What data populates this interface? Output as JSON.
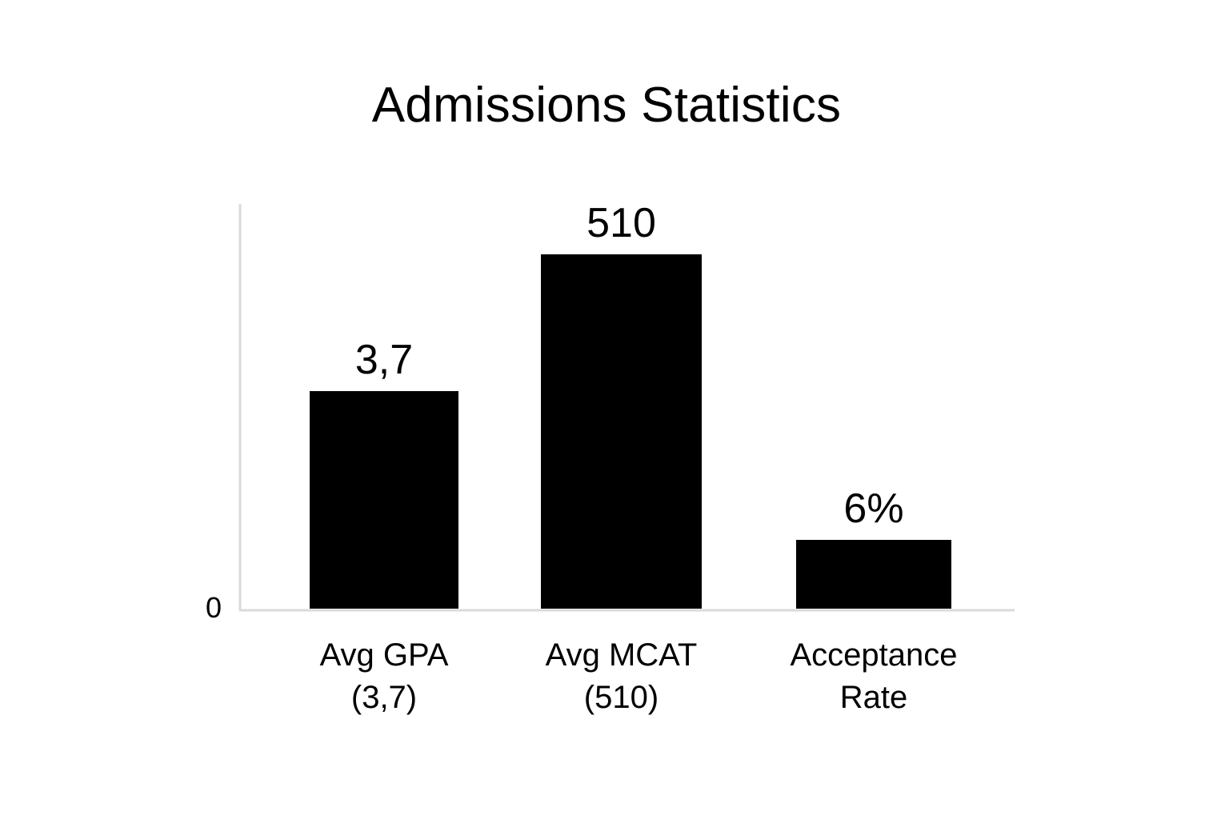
{
  "chart_data": {
    "type": "bar",
    "title": "Admissions Statistics",
    "categories": [
      [
        "Avg GPA",
        "(3,7)"
      ],
      [
        "Avg MCAT",
        "(510)"
      ],
      [
        "Acceptance",
        "Rate"
      ]
    ],
    "values": [
      3.7,
      510,
      6
    ],
    "value_labels": [
      "3,7",
      "510",
      "6%"
    ],
    "y_ticks": [
      "0"
    ],
    "xlabel": "",
    "ylabel": "",
    "grid": false,
    "legend": "none",
    "colors": {
      "bar": "#000000",
      "axis": "#dadada",
      "text": "#000000",
      "background": "#ffffff"
    }
  }
}
